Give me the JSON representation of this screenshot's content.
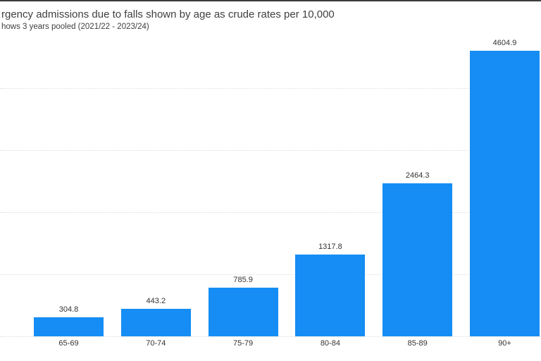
{
  "window": {
    "top_border_color": "#3c3c3c",
    "background_color": "#ffffff"
  },
  "header": {
    "title": "rgency admissions due to falls shown by age as crude rates per 10,000",
    "subtitle": "hows 3 years pooled (2021/22 - 2023/24)"
  },
  "chart_data": {
    "type": "bar",
    "title": "rgency admissions due to falls shown by age as crude rates per 10,000",
    "subtitle": "hows 3 years pooled (2021/22 - 2023/24)",
    "categories": [
      "65-69",
      "70-74",
      "75-79",
      "80-84",
      "85-89",
      "90+"
    ],
    "values": [
      304.8,
      443.2,
      785.9,
      1317.8,
      2464.3,
      4604.9
    ],
    "data_labels": [
      "304.8",
      "443.2",
      "785.9",
      "1317.8",
      "2464.3",
      "4604.9"
    ],
    "xlabel": "",
    "ylabel": "",
    "ylim": [
      0,
      5000
    ],
    "gridline_values": [
      0,
      1000,
      2000,
      3000,
      4000
    ],
    "grid_style": "dotted horizontal",
    "legend": "none",
    "data_labels_shown": true,
    "bar_color": "#158df4",
    "label_color": "#333333",
    "gridline_color": "#dedede",
    "title_color": "#3f3f3f"
  }
}
